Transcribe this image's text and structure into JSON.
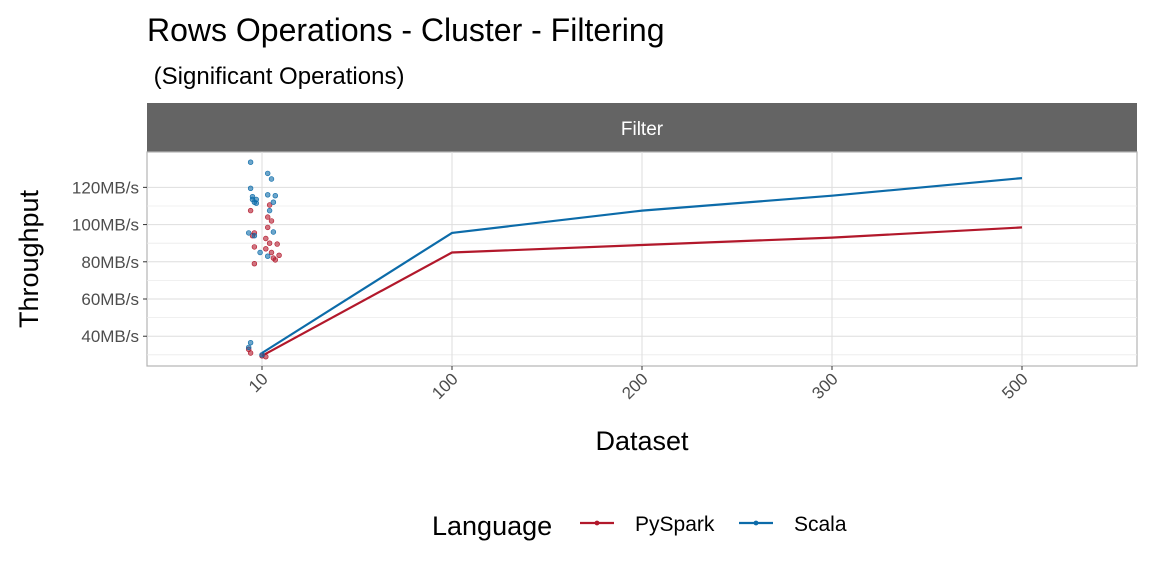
{
  "chart_data": {
    "type": "line",
    "title": "Rows Operations - Cluster - Filtering",
    "subtitle": " (Significant Operations)",
    "facet": "Filter",
    "xlabel": "Dataset",
    "ylabel": "Throughput",
    "categories": [
      "10",
      "100",
      "200",
      "300",
      "500"
    ],
    "y_ticks": [
      40,
      60,
      80,
      100,
      120
    ],
    "y_tick_labels": [
      "40MB/s",
      "60MB/s",
      "80MB/s",
      "100MB/s",
      "120MB/s"
    ],
    "ylim": [
      24,
      139
    ],
    "grid": true,
    "legend": {
      "title": "Language",
      "position": "bottom"
    },
    "series": [
      {
        "name": "PySpark",
        "color": "#B2182B",
        "mean": [
          29.5,
          85,
          89,
          93,
          98.5
        ],
        "points": [
          [
            -0.07,
            33
          ],
          [
            -0.06,
            31
          ],
          [
            0.0,
            29.5
          ],
          [
            0.02,
            29
          ],
          [
            -0.04,
            79
          ],
          [
            0.02,
            87
          ],
          [
            0.04,
            90
          ],
          [
            0.05,
            85
          ],
          [
            0.05,
            102
          ],
          [
            0.06,
            82
          ],
          [
            0.07,
            81
          ],
          [
            0.08,
            89.5
          ],
          [
            -0.05,
            94
          ],
          [
            -0.04,
            88
          ],
          [
            0.03,
            104
          ],
          [
            0.09,
            83.5
          ],
          [
            -0.06,
            107.5
          ],
          [
            -0.04,
            95.5
          ],
          [
            0.02,
            92.5
          ],
          [
            0.03,
            98.5
          ],
          [
            0.04,
            110.5
          ]
        ]
      },
      {
        "name": "Scala",
        "color": "#0C6BA9",
        "mean": [
          31,
          95.5,
          107.5,
          115.5,
          125
        ],
        "points": [
          [
            -0.07,
            34
          ],
          [
            -0.06,
            36.5
          ],
          [
            0.0,
            30
          ],
          [
            -0.07,
            95.5
          ],
          [
            -0.01,
            85
          ],
          [
            0.03,
            83
          ],
          [
            0.06,
            96
          ],
          [
            -0.05,
            115
          ],
          [
            -0.04,
            94
          ],
          [
            -0.03,
            111.5
          ],
          [
            0.04,
            107.5
          ],
          [
            -0.06,
            119.5
          ],
          [
            -0.05,
            113.5
          ],
          [
            0.03,
            116
          ],
          [
            0.06,
            112
          ],
          [
            0.07,
            115.5
          ],
          [
            -0.06,
            133.5
          ],
          [
            -0.04,
            112
          ],
          [
            -0.03,
            113.5
          ],
          [
            0.03,
            127.5
          ],
          [
            0.05,
            124.5
          ]
        ]
      }
    ]
  }
}
